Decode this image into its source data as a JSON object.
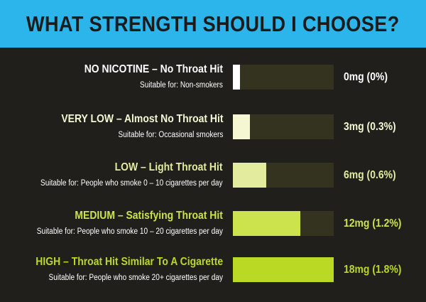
{
  "header": {
    "title": "WHAT STRENGTH SHOULD I CHOOSE?"
  },
  "colors": {
    "header_bg": "#2bb5ea",
    "background": "#211f1c",
    "track": "#34331f",
    "levels": [
      "#ffffff",
      "#f4f7d2",
      "#e3ec9e",
      "#cde34e",
      "#b9d925"
    ]
  },
  "chart_data": {
    "type": "bar",
    "orientation": "horizontal",
    "title": "WHAT STRENGTH SHOULD I CHOOSE?",
    "xlim": [
      0,
      18
    ],
    "unit": "mg",
    "rows": [
      {
        "label": "NO NICOTINE – No Throat Hit",
        "sub": "Suitable for: Non-smokers",
        "value": 0,
        "value_label": "0mg (0%)"
      },
      {
        "label": "VERY LOW – Almost No Throat Hit",
        "sub": "Suitable for: Occasional smokers",
        "value": 3,
        "value_label": "3mg (0.3%)"
      },
      {
        "label": "LOW – Light Throat Hit",
        "sub": "Suitable for: People who smoke 0 – 10 cigarettes per day",
        "value": 6,
        "value_label": "6mg (0.6%)"
      },
      {
        "label": "MEDIUM – Satisfying Throat Hit",
        "sub": "Suitable for: People who smoke 10 – 20 cigarettes per day",
        "value": 12,
        "value_label": "12mg (1.2%)"
      },
      {
        "label": "HIGH – Throat Hit Similar To A Cigarette",
        "sub": "Suitable for: People who smoke 20+ cigarettes per day",
        "value": 18,
        "value_label": "18mg (1.8%)"
      }
    ]
  }
}
